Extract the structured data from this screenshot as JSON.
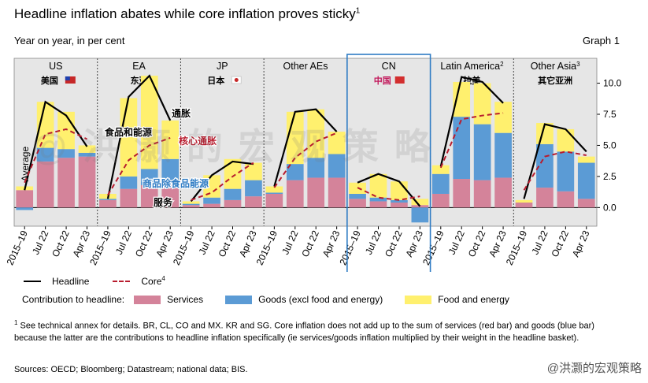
{
  "header": {
    "title": "Headline inflation abates while core inflation proves sticky",
    "title_sup": "1",
    "subtitle": "Year on year, in per cent",
    "graph_no": "Graph 1"
  },
  "colors": {
    "services": "#d4839a",
    "goods": "#5b9bd5",
    "food_energy": "#fff06e",
    "headline": "#000000",
    "core": "#b81c2e",
    "panel_bg": "#e6e6e6",
    "highlight_box": "#2f7cc4"
  },
  "chart_data": {
    "type": "bar",
    "stacked": true,
    "y_axis": {
      "ylim": [
        -1.5,
        12.0
      ],
      "ticks": [
        "10.0",
        "7.5",
        "5.0",
        "2.5",
        "0.0"
      ],
      "tick_values": [
        10,
        7.5,
        5,
        2.5,
        0
      ],
      "position": "right"
    },
    "y_label": "Average",
    "x_tick_labels": [
      "2015–19",
      "Jul 22",
      "Oct 22",
      "Apr 23"
    ],
    "panels": [
      {
        "name": "US",
        "cn_label": "美国",
        "flag": "us-flag-icon",
        "services": [
          1.4,
          3.7,
          4.0,
          4.1
        ],
        "goods": [
          -0.2,
          1.1,
          0.7,
          0.3
        ],
        "food_energy": [
          0.3,
          3.7,
          3.0,
          0.6
        ],
        "headline": [
          1.4,
          8.5,
          7.4,
          4.9
        ],
        "core": [
          2.0,
          5.9,
          6.3,
          5.5
        ]
      },
      {
        "name": "EA",
        "cn_label": "东亚",
        "flag": "",
        "services": [
          0.6,
          1.5,
          1.8,
          2.2
        ],
        "goods": [
          0.1,
          1.0,
          1.3,
          1.7
        ],
        "food_energy": [
          0.4,
          6.3,
          7.5,
          3.1
        ],
        "headline": [
          0.7,
          8.9,
          10.6,
          7.0
        ],
        "core": [
          1.0,
          3.8,
          5.0,
          5.6
        ]
      },
      {
        "name": "JP",
        "cn_label": "日本",
        "flag": "japan-flag-icon",
        "services": [
          0.2,
          0.3,
          0.6,
          0.9
        ],
        "goods": [
          0.1,
          0.5,
          0.9,
          1.3
        ],
        "food_energy": [
          0.2,
          1.8,
          2.4,
          1.4
        ],
        "headline": [
          0.5,
          2.6,
          3.7,
          3.5
        ],
        "core": [
          0.6,
          1.2,
          2.5,
          3.6
        ]
      },
      {
        "name": "Other AEs",
        "cn_label": "",
        "flag": "",
        "services": [
          1.1,
          2.2,
          2.4,
          2.4
        ],
        "goods": [
          0.1,
          1.3,
          1.6,
          1.9
        ],
        "food_energy": [
          0.5,
          4.2,
          3.9,
          1.8
        ],
        "headline": [
          1.7,
          7.7,
          7.9,
          6.1
        ],
        "core": [
          1.6,
          4.0,
          5.3,
          6.0
        ]
      },
      {
        "name": "CN",
        "cn_label": "中国",
        "flag": "china-flag-icon",
        "services": [
          0.7,
          0.5,
          0.4,
          0.2
        ],
        "goods": [
          0.4,
          0.3,
          0.2,
          -1.2
        ],
        "food_energy": [
          0.9,
          1.9,
          1.5,
          0.5
        ],
        "headline": [
          2.0,
          2.7,
          2.1,
          0.1
        ],
        "core": [
          1.6,
          0.8,
          0.6,
          0.9
        ]
      },
      {
        "name": "Latin America",
        "name_sup": "2",
        "cn_label": "拉美",
        "flag": "",
        "services": [
          1.1,
          2.3,
          2.2,
          2.4
        ],
        "goods": [
          1.6,
          5.0,
          4.5,
          3.6
        ],
        "food_energy": [
          0.7,
          2.8,
          3.3,
          2.5
        ],
        "headline": [
          3.3,
          10.5,
          10.1,
          8.4
        ],
        "core": [
          3.2,
          7.1,
          7.4,
          7.6
        ]
      },
      {
        "name": "Other Asia",
        "name_sup": "3",
        "cn_label": "其它亚洲",
        "flag": "",
        "services": [
          0.4,
          1.6,
          1.3,
          0.7
        ],
        "goods": [
          0.0,
          3.5,
          3.2,
          2.9
        ],
        "food_energy": [
          0.2,
          1.7,
          1.8,
          0.5
        ],
        "headline": [
          0.7,
          6.7,
          6.3,
          4.5
        ],
        "core": [
          1.4,
          4.1,
          4.5,
          4.2
        ]
      }
    ],
    "annotations": [
      {
        "text": "通胀",
        "color": "#000000"
      },
      {
        "text": "食品和能源",
        "color": "#000000"
      },
      {
        "text": "核心通胀",
        "color": "#b81c2e"
      },
      {
        "text": "商品除食品能源",
        "color": "#2f7cc4"
      },
      {
        "text": "服务",
        "color": "#000000"
      }
    ]
  },
  "legend": {
    "headline": "Headline",
    "core": "Core",
    "core_sup": "4",
    "contribution_label": "Contribution to headline:",
    "services": "Services",
    "goods": "Goods (excl food and energy)",
    "food_energy": "Food and energy"
  },
  "footnotes": {
    "line1": "See technical annex for details.   BR, CL, CO and MX.   KR and SG.   Core inflation does not add up to the sum of services (red bar) and goods (blue bar) because the latter are the contributions to headline inflation specifically (ie services/goods inflation multiplied by their weight in the headline basket).",
    "sources": "Sources: OECD; Bloomberg; Datastream; national data; BIS."
  },
  "watermark": {
    "main": "@洪灏的宏观策略",
    "bottom": "@洪灏的宏观策略"
  }
}
